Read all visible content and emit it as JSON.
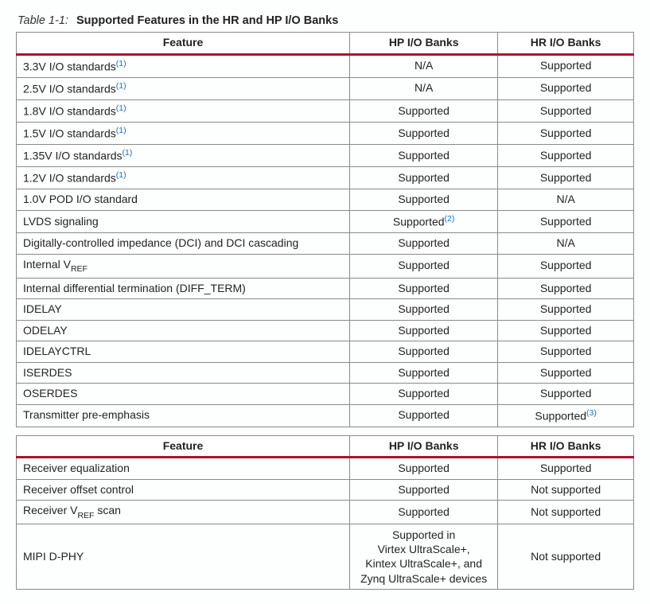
{
  "caption": {
    "number": "Table 1-1:",
    "title": "Supported Features in the HR and HP I/O Banks"
  },
  "headers": {
    "feature": "Feature",
    "hp": "HP I/O Banks",
    "hr": "HR I/O Banks"
  },
  "footnote_color": "#1a6fc4",
  "rule_color": "#b01030",
  "border_color": "#8a8a8a",
  "rows": [
    {
      "feature_segs": [
        [
          "3.3V I/O standards",
          ""
        ],
        [
          "(1)",
          "sup"
        ]
      ],
      "hp": [
        [
          "N/A",
          ""
        ]
      ],
      "hr": [
        [
          "Supported",
          ""
        ]
      ]
    },
    {
      "feature_segs": [
        [
          "2.5V I/O standards",
          ""
        ],
        [
          "(1)",
          "sup"
        ]
      ],
      "hp": [
        [
          "N/A",
          ""
        ]
      ],
      "hr": [
        [
          "Supported",
          ""
        ]
      ]
    },
    {
      "feature_segs": [
        [
          "1.8V I/O standards",
          ""
        ],
        [
          "(1)",
          "sup"
        ]
      ],
      "hp": [
        [
          "Supported",
          ""
        ]
      ],
      "hr": [
        [
          "Supported",
          ""
        ]
      ]
    },
    {
      "feature_segs": [
        [
          "1.5V I/O standards",
          ""
        ],
        [
          "(1)",
          "sup"
        ]
      ],
      "hp": [
        [
          "Supported",
          ""
        ]
      ],
      "hr": [
        [
          "Supported",
          ""
        ]
      ]
    },
    {
      "feature_segs": [
        [
          "1.35V I/O standards",
          ""
        ],
        [
          "(1)",
          "sup"
        ]
      ],
      "hp": [
        [
          "Supported",
          ""
        ]
      ],
      "hr": [
        [
          "Supported",
          ""
        ]
      ]
    },
    {
      "feature_segs": [
        [
          "1.2V I/O standards",
          ""
        ],
        [
          "(1)",
          "sup"
        ]
      ],
      "hp": [
        [
          "Supported",
          ""
        ]
      ],
      "hr": [
        [
          "Supported",
          ""
        ]
      ]
    },
    {
      "feature_segs": [
        [
          "1.0V POD I/O standard",
          ""
        ]
      ],
      "hp": [
        [
          "Supported",
          ""
        ]
      ],
      "hr": [
        [
          "N/A",
          ""
        ]
      ]
    },
    {
      "feature_segs": [
        [
          "LVDS signaling",
          ""
        ]
      ],
      "hp": [
        [
          "Supported",
          ""
        ],
        [
          "(2)",
          "sup"
        ]
      ],
      "hr": [
        [
          "Supported",
          ""
        ]
      ]
    },
    {
      "feature_segs": [
        [
          "Digitally-controlled impedance (DCI) and DCI cascading",
          ""
        ]
      ],
      "hp": [
        [
          "Supported",
          ""
        ]
      ],
      "hr": [
        [
          "N/A",
          ""
        ]
      ]
    },
    {
      "feature_segs": [
        [
          "Internal V",
          ""
        ],
        [
          "REF",
          "sub"
        ]
      ],
      "hp": [
        [
          "Supported",
          ""
        ]
      ],
      "hr": [
        [
          "Supported",
          ""
        ]
      ]
    },
    {
      "feature_segs": [
        [
          "Internal differential termination (DIFF_TERM)",
          ""
        ]
      ],
      "hp": [
        [
          "Supported",
          ""
        ]
      ],
      "hr": [
        [
          "Supported",
          ""
        ]
      ]
    },
    {
      "feature_segs": [
        [
          "IDELAY",
          ""
        ]
      ],
      "hp": [
        [
          "Supported",
          ""
        ]
      ],
      "hr": [
        [
          "Supported",
          ""
        ]
      ]
    },
    {
      "feature_segs": [
        [
          "ODELAY",
          ""
        ]
      ],
      "hp": [
        [
          "Supported",
          ""
        ]
      ],
      "hr": [
        [
          "Supported",
          ""
        ]
      ]
    },
    {
      "feature_segs": [
        [
          "IDELAYCTRL",
          ""
        ]
      ],
      "hp": [
        [
          "Supported",
          ""
        ]
      ],
      "hr": [
        [
          "Supported",
          ""
        ]
      ]
    },
    {
      "feature_segs": [
        [
          "ISERDES",
          ""
        ]
      ],
      "hp": [
        [
          "Supported",
          ""
        ]
      ],
      "hr": [
        [
          "Supported",
          ""
        ]
      ]
    },
    {
      "feature_segs": [
        [
          "OSERDES",
          ""
        ]
      ],
      "hp": [
        [
          "Supported",
          ""
        ]
      ],
      "hr": [
        [
          "Supported",
          ""
        ]
      ]
    },
    {
      "feature_segs": [
        [
          "Transmitter pre-emphasis",
          ""
        ]
      ],
      "hp": [
        [
          "Supported",
          ""
        ]
      ],
      "hr": [
        [
          "Supported",
          ""
        ],
        [
          "(3)",
          "sup"
        ]
      ]
    }
  ],
  "rows2": [
    {
      "feature_segs": [
        [
          "Receiver equalization",
          ""
        ]
      ],
      "hp": [
        [
          "Supported",
          ""
        ]
      ],
      "hr": [
        [
          "Supported",
          ""
        ]
      ]
    },
    {
      "feature_segs": [
        [
          "Receiver offset control",
          ""
        ]
      ],
      "hp": [
        [
          "Supported",
          ""
        ]
      ],
      "hr": [
        [
          "Not supported",
          ""
        ]
      ]
    },
    {
      "feature_segs": [
        [
          "Receiver V",
          ""
        ],
        [
          "REF",
          "sub"
        ],
        [
          " scan",
          ""
        ]
      ],
      "hp": [
        [
          "Supported",
          ""
        ]
      ],
      "hr": [
        [
          "Not supported",
          ""
        ]
      ]
    },
    {
      "feature_segs": [
        [
          "MIPI D-PHY",
          ""
        ]
      ],
      "hp_lines": [
        "Supported in",
        "Virtex UltraScale+,",
        "Kintex UltraScale+, and",
        "Zynq UltraScale+ devices"
      ],
      "hr": [
        [
          "Not supported",
          ""
        ]
      ]
    }
  ]
}
